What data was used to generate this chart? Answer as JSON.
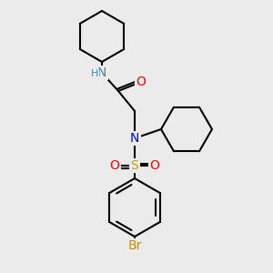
{
  "bg_color": "#ebebeb",
  "bond_color": "#000000",
  "bond_width": 1.5,
  "atom_colors": {
    "N": "#0000ee",
    "NH": "#4488aa",
    "O": "#ff0000",
    "S": "#bbaa00",
    "Br": "#cc8800",
    "C": "#000000"
  },
  "font_size": 9,
  "font_size_small": 8
}
